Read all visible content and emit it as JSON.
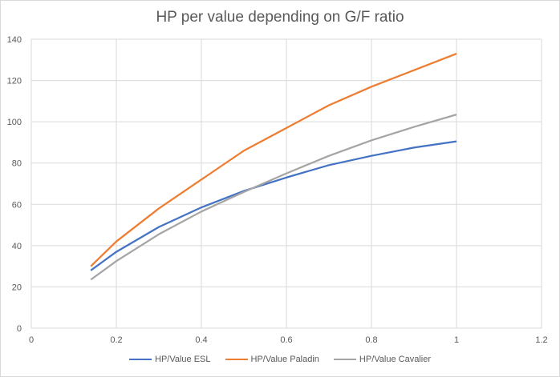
{
  "chart_data": {
    "type": "line",
    "title": "HP per value depending on G/F ratio",
    "xlabel": "",
    "ylabel": "",
    "xlim": [
      0,
      1.2
    ],
    "ylim": [
      0,
      140
    ],
    "x_ticks": [
      0,
      0.2,
      0.4,
      0.6,
      0.8,
      1,
      1.2
    ],
    "y_ticks": [
      0,
      20,
      40,
      60,
      80,
      100,
      120,
      140
    ],
    "grid": true,
    "legend_position": "bottom",
    "series": [
      {
        "name": "HP/Value ESL",
        "color": "#4472c4",
        "x": [
          0.14,
          0.2,
          0.3,
          0.4,
          0.5,
          0.6,
          0.7,
          0.8,
          0.9,
          1.0
        ],
        "y": [
          28,
          37,
          49,
          58.5,
          66.5,
          73,
          79,
          83.5,
          87.5,
          90.5
        ]
      },
      {
        "name": "HP/Value Paladin",
        "color": "#ed7d31",
        "x": [
          0.14,
          0.2,
          0.3,
          0.4,
          0.5,
          0.6,
          0.7,
          0.8,
          0.9,
          1.0
        ],
        "y": [
          30,
          42,
          58,
          72,
          86,
          97,
          108,
          117,
          125,
          133
        ]
      },
      {
        "name": "HP/Value Cavalier",
        "color": "#a5a5a5",
        "x": [
          0.14,
          0.2,
          0.3,
          0.4,
          0.5,
          0.6,
          0.7,
          0.8,
          0.9,
          1.0
        ],
        "y": [
          23.5,
          32.5,
          45.5,
          56.5,
          66,
          75,
          83.5,
          91,
          97.5,
          103.5
        ]
      }
    ]
  }
}
